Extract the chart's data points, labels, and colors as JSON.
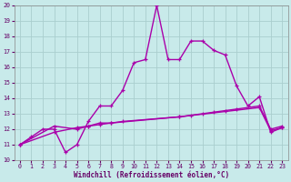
{
  "xlabel": "Windchill (Refroidissement éolien,°C)",
  "xlim": [
    -0.5,
    23.5
  ],
  "ylim": [
    10,
    20
  ],
  "xticks": [
    0,
    1,
    2,
    3,
    4,
    5,
    6,
    7,
    8,
    9,
    10,
    11,
    12,
    13,
    14,
    15,
    16,
    17,
    18,
    19,
    20,
    21,
    22,
    23
  ],
  "yticks": [
    10,
    11,
    12,
    13,
    14,
    15,
    16,
    17,
    18,
    19,
    20
  ],
  "bg_color": "#c8eaea",
  "grid_color": "#aacece",
  "line_color": "#aa00aa",
  "line1_x": [
    0,
    1,
    2,
    3,
    4,
    5,
    6,
    7,
    8,
    9,
    10,
    11,
    12,
    13,
    14,
    15,
    16,
    17,
    18,
    19,
    20,
    21,
    22,
    23
  ],
  "line1_y": [
    11.0,
    11.5,
    12.0,
    12.0,
    10.5,
    11.0,
    12.5,
    13.5,
    13.5,
    14.5,
    16.3,
    16.5,
    20.0,
    16.5,
    16.5,
    17.7,
    17.7,
    17.1,
    16.8,
    14.8,
    13.5,
    14.1,
    11.8,
    12.1
  ],
  "line2_x": [
    0,
    3,
    5,
    6,
    7,
    8,
    9,
    14,
    15,
    16,
    17,
    18,
    19,
    21,
    22,
    23
  ],
  "line2_y": [
    11.0,
    12.2,
    12.0,
    12.2,
    12.4,
    12.4,
    12.5,
    12.8,
    12.9,
    13.0,
    13.1,
    13.2,
    13.3,
    13.5,
    12.0,
    12.2
  ],
  "line3_x": [
    0,
    3,
    5,
    6,
    7,
    8,
    14,
    21,
    22,
    23
  ],
  "line3_y": [
    11.0,
    11.8,
    12.1,
    12.2,
    12.3,
    12.4,
    12.8,
    13.4,
    11.9,
    12.1
  ],
  "tick_fontsize": 4.8,
  "xlabel_fontsize": 5.5,
  "lw": 1.0,
  "marker_size": 2.5
}
